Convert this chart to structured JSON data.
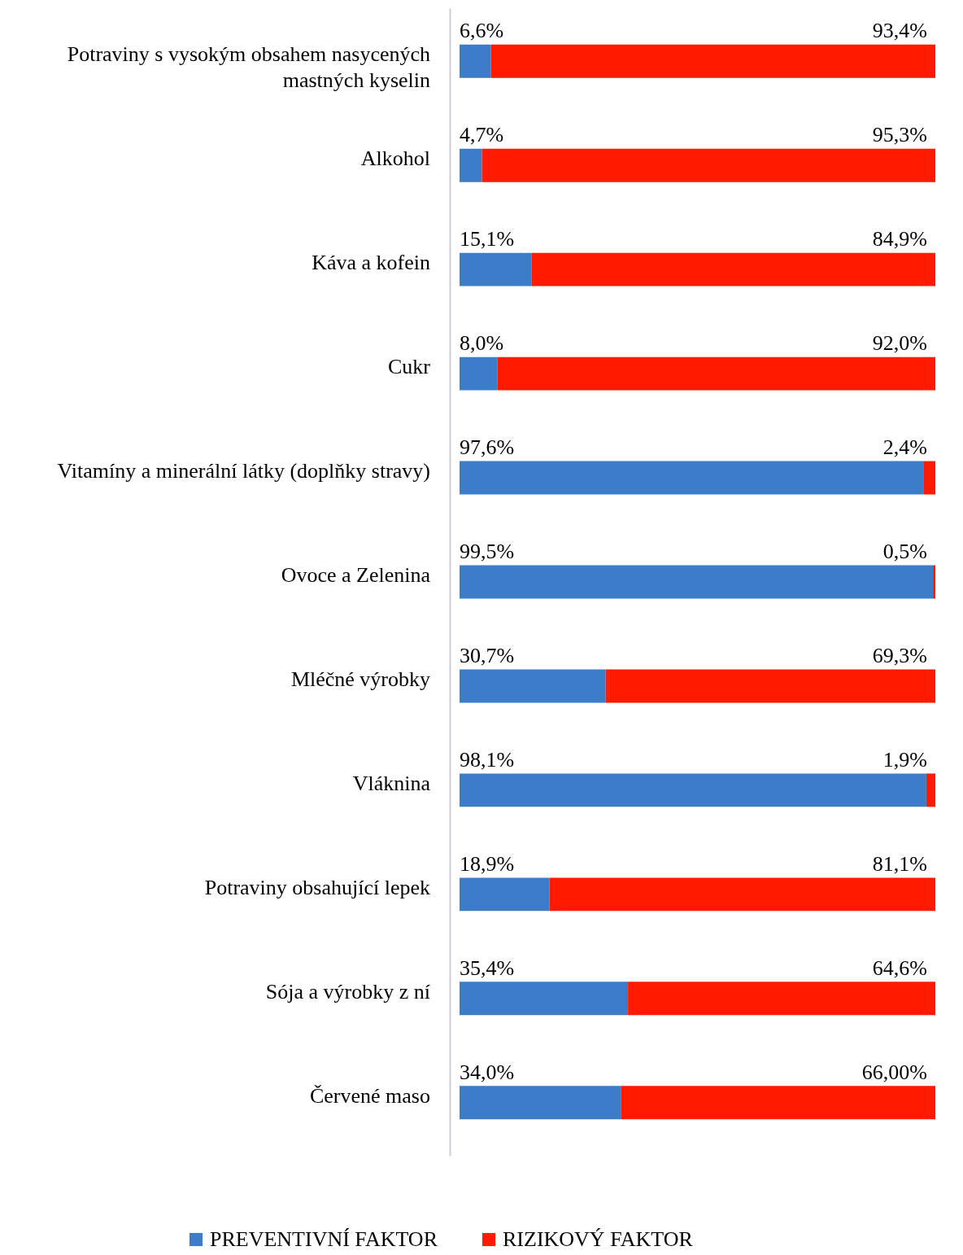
{
  "chart_data": {
    "type": "bar",
    "orientation": "horizontal",
    "stacked": true,
    "legend": "bottom",
    "categories": [
      "Potraviny s vysokým obsahem nasycených mastných kyselin",
      "Alkohol",
      "Káva a kofein",
      "Cukr",
      "Vitamíny a minerální látky (doplňky stravy)",
      "Ovoce a Zelenina",
      "Mléčné výrobky",
      "Vláknina",
      "Potraviny obsahující lepek",
      "Sója a výrobky z ní",
      "Červené maso"
    ],
    "series": [
      {
        "name": "PREVENTIVNÍ FAKTOR",
        "color": "#3d7cc9",
        "values": [
          6.6,
          4.7,
          15.1,
          8.0,
          97.6,
          99.5,
          30.7,
          98.1,
          18.9,
          35.4,
          34.0
        ],
        "value_labels": [
          "6,6%",
          "4,7%",
          "15,1%",
          "8,0%",
          "97,6%",
          "99,5%",
          "30,7%",
          "98,1%",
          "18,9%",
          "35,4%",
          "34,0%"
        ]
      },
      {
        "name": "RIZIKOVÝ FAKTOR",
        "color": "#ff1a00",
        "values": [
          93.4,
          95.3,
          84.9,
          92.0,
          2.4,
          0.5,
          69.3,
          1.9,
          81.1,
          64.6,
          66.0
        ],
        "value_labels": [
          "93,4%",
          "95,3%",
          "84,9%",
          "92,0%",
          "2,4%",
          "0,5%",
          "69,3%",
          "1,9%",
          "81,1%",
          "64,6%",
          "66,00%"
        ]
      }
    ]
  }
}
